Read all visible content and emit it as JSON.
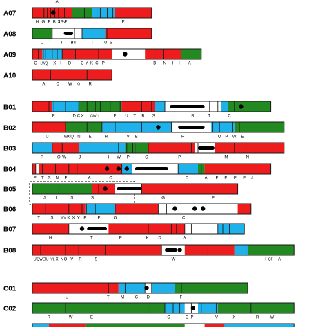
{
  "colors": {
    "red": "#ee1c1c",
    "blue": "#1fb1ea",
    "green": "#238a22",
    "white": "#ffffff",
    "outline": "#1a1a1a",
    "dot": "#000000"
  },
  "chromosomes": [
    {
      "id": "A07",
      "bar": [
        0.0,
        0.36
      ],
      "segments": [
        [
          "red",
          0.0,
          0.12
        ],
        [
          "green",
          0.12,
          0.18
        ],
        [
          "blue",
          0.18,
          0.25
        ],
        [
          "red",
          0.25,
          0.36
        ]
      ],
      "lines": [
        0.035,
        0.045,
        0.055,
        0.068,
        0.079,
        0.097,
        0.157,
        0.195,
        0.205,
        0.226,
        0.243
      ],
      "dots": [
        0.063
      ],
      "thick": [],
      "labels": [
        [
          "H",
          0.01
        ],
        [
          "G",
          0.028
        ],
        [
          "F",
          0.047
        ],
        [
          "B",
          0.062
        ],
        [
          "X",
          0.076
        ],
        [
          "I",
          0.081
        ],
        [
          "S",
          0.085
        ],
        [
          "N",
          0.091
        ],
        [
          "E",
          0.097
        ],
        [
          "E",
          0.27
        ]
      ],
      "toplabels": [
        [
          "A",
          0.07
        ]
      ]
    },
    {
      "id": "A08",
      "bar": [
        0.0,
        0.36
      ],
      "segments": [
        [
          "green",
          0.0,
          0.06
        ],
        [
          "white",
          0.06,
          0.15
        ],
        [
          "blue",
          0.15,
          0.22
        ],
        [
          "red",
          0.22,
          0.36
        ]
      ],
      "lines": [
        0.06,
        0.127,
        0.15,
        0.225
      ],
      "dots": [],
      "thick": [
        [
          0.095,
          0.123
        ]
      ],
      "labels": [
        [
          "C",
          0.025
        ],
        [
          "T",
          0.085
        ],
        [
          "B",
          0.116
        ],
        [
          "I",
          0.119
        ],
        [
          "II",
          0.125
        ],
        [
          "T",
          0.177
        ],
        [
          "U",
          0.217
        ],
        [
          "S",
          0.233
        ]
      ],
      "toplabels": []
    },
    {
      "id": "A09",
      "bar": [
        0.0,
        0.51
      ],
      "segments": [
        [
          "red",
          0.0,
          0.03
        ],
        [
          "blue",
          0.03,
          0.09
        ],
        [
          "red",
          0.09,
          0.24
        ],
        [
          "white",
          0.24,
          0.34
        ],
        [
          "red",
          0.34,
          0.45
        ],
        [
          "green",
          0.45,
          0.51
        ]
      ],
      "lines": [
        0.018,
        0.033,
        0.04,
        0.06,
        0.075,
        0.09,
        0.13,
        0.2,
        0.37,
        0.397
      ],
      "dots": [
        0.28
      ],
      "thick": [],
      "labels": [
        [
          "O",
          0.005
        ],
        [
          "LWQ",
          0.024
        ],
        [
          "X",
          0.063
        ],
        [
          "H",
          0.078
        ],
        [
          "D",
          0.108
        ],
        [
          "C",
          0.146
        ],
        [
          "Y",
          0.16
        ],
        [
          "K",
          0.175
        ],
        [
          "C",
          0.19
        ],
        [
          "P",
          0.21
        ],
        [
          "B",
          0.365
        ],
        [
          "N",
          0.395
        ],
        [
          "I",
          0.422
        ],
        [
          "H",
          0.442
        ],
        [
          "A",
          0.47
        ]
      ],
      "toplabels": []
    },
    {
      "id": "A10",
      "bar": [
        0.0,
        0.24
      ],
      "segments": [
        [
          "red",
          0.0,
          0.24
        ]
      ],
      "lines": [
        0.055,
        0.165
      ],
      "dots": [],
      "thick": [],
      "labels": [
        [
          "A",
          0.03
        ],
        [
          "C",
          0.072
        ],
        [
          "W",
          0.108
        ],
        [
          "IO",
          0.133
        ],
        [
          "R",
          0.17
        ]
      ],
      "toplabels": []
    },
    {
      "id": "B01",
      "bar": [
        0.0,
        0.72
      ],
      "segments": [
        [
          "red",
          0.0,
          0.06
        ],
        [
          "blue",
          0.06,
          0.14
        ],
        [
          "green",
          0.14,
          0.27
        ],
        [
          "red",
          0.27,
          0.37
        ],
        [
          "blue",
          0.37,
          0.4
        ],
        [
          "white",
          0.4,
          0.57
        ],
        [
          "blue",
          0.57,
          0.59
        ],
        [
          "green",
          0.59,
          0.72
        ]
      ],
      "lines": [
        0.05,
        0.065,
        0.1,
        0.14,
        0.165,
        0.19,
        0.205,
        0.235,
        0.265,
        0.33,
        0.36,
        0.4,
        0.535,
        0.56,
        0.61
      ],
      "dots": [
        0.63
      ],
      "thick": [
        [
          0.415,
          0.52
        ]
      ],
      "labels": [
        [
          "F",
          0.06
        ],
        [
          "D",
          0.122
        ],
        [
          "C",
          0.135
        ],
        [
          "X",
          0.147
        ],
        [
          "GWLL",
          0.175
        ],
        [
          "F",
          0.245
        ],
        [
          "U",
          0.28
        ],
        [
          "T",
          0.305
        ],
        [
          "B",
          0.33
        ],
        [
          "S",
          0.362
        ],
        [
          "B",
          0.48
        ],
        [
          "T",
          0.53
        ],
        [
          "C",
          0.59
        ]
      ],
      "toplabels": []
    },
    {
      "id": "B02",
      "bar": [
        0.0,
        0.76
      ],
      "segments": [
        [
          "red",
          0.0,
          0.1
        ],
        [
          "green",
          0.1,
          0.21
        ],
        [
          "blue",
          0.21,
          0.42
        ],
        [
          "white",
          0.42,
          0.54
        ],
        [
          "blue",
          0.54,
          0.61
        ],
        [
          "green",
          0.61,
          0.76
        ]
      ],
      "lines": [
        0.1,
        0.165,
        0.18,
        0.21,
        0.25,
        0.33,
        0.42,
        0.545,
        0.565,
        0.605,
        0.625
      ],
      "dots": [
        0.38
      ],
      "thick": [
        [
          0.44,
          0.52
        ]
      ],
      "labels": [
        [
          "U",
          0.04
        ],
        [
          "W",
          0.095
        ],
        [
          "X",
          0.105
        ],
        [
          "Q",
          0.115
        ],
        [
          "N",
          0.136
        ],
        [
          "E",
          0.17
        ],
        [
          "H",
          0.218
        ],
        [
          "V",
          0.285
        ],
        [
          "B",
          0.31
        ],
        [
          "P",
          0.45
        ],
        [
          "O",
          0.56
        ],
        [
          "P",
          0.582
        ],
        [
          "W",
          0.604
        ],
        [
          "E",
          0.63
        ]
      ],
      "toplabels": []
    },
    {
      "id": "B03",
      "bar": [
        0.0,
        0.76
      ],
      "segments": [
        [
          "blue",
          0.0,
          0.06
        ],
        [
          "red",
          0.06,
          0.14
        ],
        [
          "blue",
          0.14,
          0.28
        ],
        [
          "green",
          0.28,
          0.35
        ],
        [
          "red",
          0.35,
          0.49
        ],
        [
          "white",
          0.49,
          0.55
        ],
        [
          "red",
          0.55,
          0.76
        ]
      ],
      "lines": [
        0.06,
        0.09,
        0.26,
        0.285,
        0.303,
        0.31,
        0.35,
        0.48,
        0.5,
        0.61,
        0.645
      ],
      "dots": [],
      "thick": [
        [
          0.5,
          0.55
        ]
      ],
      "labels": [
        [
          "R",
          0.025
        ],
        [
          "Q",
          0.075
        ],
        [
          "W",
          0.09
        ],
        [
          "J",
          0.14
        ],
        [
          "I",
          0.228
        ],
        [
          "W",
          0.255
        ],
        [
          "P",
          0.285
        ],
        [
          "O",
          0.34
        ],
        [
          "P",
          0.44
        ],
        [
          "M",
          0.58
        ],
        [
          "N",
          0.645
        ]
      ],
      "toplabels": []
    },
    {
      "id": "B04",
      "bar": [
        0.0,
        0.72
      ],
      "segments": [
        [
          "red",
          0.0,
          0.01
        ],
        [
          "white",
          0.01,
          0.02
        ],
        [
          "red",
          0.02,
          0.27
        ],
        [
          "blue",
          0.27,
          0.3
        ],
        [
          "white",
          0.3,
          0.44
        ],
        [
          "blue",
          0.44,
          0.5
        ],
        [
          "green",
          0.5,
          0.52
        ],
        [
          "red",
          0.52,
          0.72
        ]
      ],
      "lines": [
        0.01,
        0.03,
        0.07,
        0.11,
        0.135,
        0.27,
        0.295,
        0.44,
        0.51
      ],
      "dots": [
        0.225,
        0.26,
        0.285
      ],
      "thick": [
        [
          0.31,
          0.41
        ]
      ],
      "labels": [
        [
          "E",
          0.004
        ],
        [
          "T",
          0.027
        ],
        [
          "S",
          0.047
        ],
        [
          "N",
          0.07
        ],
        [
          "E",
          0.097
        ],
        [
          "A",
          0.168
        ],
        [
          "C",
          0.232
        ],
        [
          "C",
          0.462
        ],
        [
          "A",
          0.52
        ],
        [
          "E",
          0.553
        ],
        [
          "E",
          0.58
        ],
        [
          "E",
          0.608
        ],
        [
          "E",
          0.636
        ],
        [
          "J",
          0.66
        ]
      ],
      "toplabels": []
    },
    {
      "id": "B05",
      "bar": [
        0.0,
        0.62
      ],
      "segments": [
        [
          "green",
          0.0,
          0.18
        ],
        [
          "red",
          0.18,
          0.25
        ],
        [
          "white",
          0.25,
          0.33
        ],
        [
          "red",
          0.33,
          0.62
        ]
      ],
      "lines": [
        0.08,
        0.18,
        0.2,
        0.33
      ],
      "dots": [
        0.22
      ],
      "thick": [
        [
          0.255,
          0.33
        ]
      ],
      "labels": [
        [
          "J",
          0.033
        ],
        [
          "I",
          0.07
        ],
        [
          "S",
          0.115
        ],
        [
          "S",
          0.177
        ],
        [
          "G",
          0.39
        ],
        [
          "F",
          0.542
        ]
      ],
      "toplabels": [],
      "dashed": [
        0.0,
        0.3
      ]
    },
    {
      "id": "B06",
      "bar": [
        0.0,
        0.66
      ],
      "segments": [
        [
          "red",
          0.0,
          0.16
        ],
        [
          "blue",
          0.16,
          0.25
        ],
        [
          "red",
          0.25,
          0.38
        ],
        [
          "white",
          0.38,
          0.62
        ],
        [
          "red",
          0.62,
          0.66
        ]
      ],
      "lines": [
        0.04,
        0.11,
        0.15,
        0.163,
        0.19,
        0.25,
        0.38,
        0.405
      ],
      "dots": [
        0.43,
        0.49,
        0.515
      ],
      "thick": [],
      "labels": [
        [
          "T",
          0.015
        ],
        [
          "S",
          0.055
        ],
        [
          "WV",
          0.085
        ],
        [
          "K",
          0.105
        ],
        [
          "X",
          0.12
        ],
        [
          "Y",
          0.135
        ],
        [
          "R",
          0.155
        ],
        [
          "E",
          0.197
        ],
        [
          "O",
          0.245
        ],
        [
          "C",
          0.452
        ]
      ],
      "toplabels": []
    },
    {
      "id": "B07",
      "bar": [
        0.0,
        0.64
      ],
      "segments": [
        [
          "red",
          0.0,
          0.11
        ],
        [
          "white",
          0.11,
          0.23
        ],
        [
          "red",
          0.23,
          0.46
        ],
        [
          "white",
          0.46,
          0.56
        ],
        [
          "blue",
          0.56,
          0.64
        ]
      ],
      "lines": [
        0.11,
        0.35,
        0.42,
        0.435,
        0.46,
        0.48,
        0.56,
        0.575,
        0.595
      ],
      "dots": [
        0.15
      ],
      "thick": [
        [
          0.165,
          0.225
        ]
      ],
      "labels": [
        [
          "H",
          0.05
        ],
        [
          "T",
          0.175
        ],
        [
          "E",
          0.262
        ],
        [
          "K",
          0.343
        ],
        [
          "D",
          0.38
        ],
        [
          "A",
          0.455
        ]
      ],
      "toplabels": []
    },
    {
      "id": "B08",
      "bar": [
        0.0,
        0.79
      ],
      "segments": [
        [
          "red",
          0.0,
          0.39
        ],
        [
          "white",
          0.39,
          0.46
        ],
        [
          "red",
          0.46,
          0.61
        ],
        [
          "blue",
          0.61,
          0.65
        ],
        [
          "green",
          0.65,
          0.79
        ]
      ],
      "lines": [
        0.025,
        0.1,
        0.14,
        0.22,
        0.39,
        0.53,
        0.645
      ],
      "dots": [
        0.43,
        0.445
      ],
      "thick": [
        [
          0.4,
          0.43
        ]
      ],
      "labels": [
        [
          "U",
          0.003
        ],
        [
          "QWE",
          0.013
        ],
        [
          "TU",
          0.035
        ],
        [
          "VL",
          0.055
        ],
        [
          "X",
          0.07
        ],
        [
          "N",
          0.085
        ],
        [
          "O",
          0.095
        ],
        [
          "V",
          0.115
        ],
        [
          "R",
          0.14
        ],
        [
          "S",
          0.188
        ],
        [
          "W",
          0.42
        ],
        [
          "I",
          0.576
        ],
        [
          "H",
          0.697
        ],
        [
          "QF",
          0.712
        ],
        [
          "A",
          0.742
        ]
      ],
      "toplabels": []
    },
    {
      "id": "C01",
      "bar": [
        0.0,
        0.65
      ],
      "segments": [
        [
          "red",
          0.0,
          0.26
        ],
        [
          "blue",
          0.26,
          0.34
        ],
        [
          "white",
          0.34,
          0.36
        ],
        [
          "blue",
          0.36,
          0.43
        ],
        [
          "green",
          0.43,
          0.65
        ]
      ],
      "lines": [
        0.23,
        0.255,
        0.28,
        0.34,
        0.36,
        0.45
      ],
      "dots": [
        0.345
      ],
      "thick": [],
      "labels": [
        [
          "U",
          0.1
        ],
        [
          "T",
          0.225
        ],
        [
          "M",
          0.267
        ],
        [
          "C",
          0.31
        ],
        [
          "D",
          0.345
        ],
        [
          "F",
          0.445
        ]
      ],
      "toplabels": []
    },
    {
      "id": "C02",
      "bar": [
        0.0,
        0.79
      ],
      "segments": [
        [
          "green",
          0.0,
          0.4
        ],
        [
          "blue",
          0.4,
          0.46
        ],
        [
          "white",
          0.46,
          0.5
        ],
        [
          "blue",
          0.5,
          0.56
        ],
        [
          "green",
          0.56,
          0.79
        ]
      ],
      "lines": [
        0.1,
        0.355,
        0.4,
        0.425,
        0.445,
        0.48,
        0.51,
        0.555,
        0.66
      ],
      "dots": [
        0.485
      ],
      "thick": [],
      "labels": [
        [
          "R",
          0.045
        ],
        [
          "W",
          0.11
        ],
        [
          "E",
          0.175
        ],
        [
          "C",
          0.407
        ],
        [
          "C",
          0.462
        ],
        [
          "P",
          0.478
        ],
        [
          "V",
          0.552
        ],
        [
          "X",
          0.605
        ],
        [
          "R",
          0.675
        ],
        [
          "W",
          0.718
        ]
      ],
      "toplabels": []
    }
  ]
}
